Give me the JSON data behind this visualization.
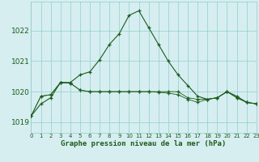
{
  "x_hours": [
    0,
    1,
    2,
    3,
    4,
    5,
    6,
    7,
    8,
    9,
    10,
    11,
    12,
    13,
    14,
    15,
    16,
    17,
    18,
    19,
    20,
    21,
    22,
    23
  ],
  "line1": [
    1019.2,
    1019.6,
    1019.8,
    1020.3,
    1020.3,
    1020.55,
    1020.65,
    1021.05,
    1021.55,
    1021.9,
    1022.5,
    1022.65,
    1022.1,
    1021.55,
    1021.0,
    1020.55,
    1020.2,
    1019.85,
    1019.75,
    1019.8,
    1020.0,
    1019.85,
    1019.65,
    1019.6
  ],
  "line2": [
    1019.2,
    1019.85,
    1019.9,
    1020.3,
    1020.28,
    1020.05,
    1020.0,
    1020.0,
    1020.0,
    1020.0,
    1020.0,
    1020.0,
    1020.0,
    1020.0,
    1020.0,
    1020.0,
    1019.8,
    1019.75,
    1019.75,
    1019.8,
    1020.0,
    1019.8,
    1019.65,
    1019.6
  ],
  "line3": [
    1019.2,
    1019.85,
    1019.9,
    1020.3,
    1020.28,
    1020.05,
    1020.0,
    1020.0,
    1020.0,
    1020.0,
    1020.0,
    1020.0,
    1020.0,
    1019.98,
    1019.95,
    1019.9,
    1019.75,
    1019.65,
    1019.75,
    1019.8,
    1020.0,
    1019.8,
    1019.65,
    1019.6
  ],
  "line_color": "#1a5c1a",
  "background_color": "#d6eef0",
  "grid_color": "#8ecece",
  "ylabel_ticks": [
    1019,
    1020,
    1021,
    1022
  ],
  "xlabel": "Graphe pression niveau de la mer (hPa)",
  "ylim": [
    1018.65,
    1022.95
  ],
  "xlim": [
    0,
    23
  ]
}
